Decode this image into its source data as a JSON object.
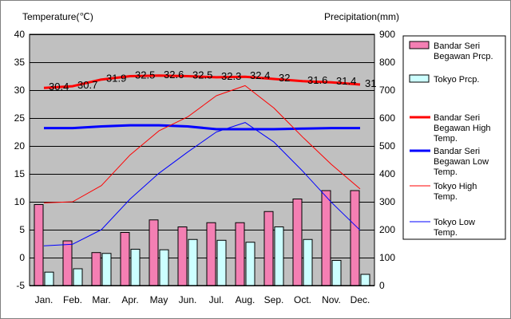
{
  "chart_data": {
    "type": "bar+line",
    "categories": [
      "Jan.",
      "Feb.",
      "Mar.",
      "Apr.",
      "May",
      "Jun.",
      "Jul.",
      "Aug.",
      "Sep.",
      "Oct.",
      "Nov.",
      "Dec."
    ],
    "left_axis": {
      "label": "Temperature(℃)",
      "ylim": [
        -5,
        40
      ],
      "ticks": [
        -5,
        0,
        5,
        10,
        15,
        20,
        25,
        30,
        35,
        40
      ]
    },
    "right_axis": {
      "label": "Precipitation(mm)",
      "ylim": [
        0,
        900
      ],
      "ticks": [
        0,
        100,
        200,
        300,
        400,
        500,
        600,
        700,
        800,
        900
      ]
    },
    "grid": true,
    "legend_placement": "right",
    "bar_series": [
      {
        "name": "Bandar Seri Begawan Prcp.",
        "axis": "right",
        "color": "#f47fb3",
        "values": [
          290,
          160,
          118,
          190,
          235,
          210,
          225,
          225,
          265,
          310,
          340,
          340
        ]
      },
      {
        "name": "Tokyo Prcp.",
        "axis": "right",
        "color": "#ccffff",
        "values": [
          48,
          60,
          115,
          130,
          128,
          165,
          162,
          155,
          210,
          165,
          90,
          40
        ]
      }
    ],
    "line_series": [
      {
        "name": "Bandar Seri Begawan High Temp.",
        "axis": "left",
        "color": "#ff0000",
        "width": 3,
        "values": [
          30.4,
          30.7,
          31.9,
          32.5,
          32.6,
          32.5,
          32.3,
          32.4,
          32,
          31.6,
          31.4,
          31
        ],
        "labels": [
          "30.4",
          "30.7",
          "31.9",
          "32.5",
          "32.6",
          "32.5",
          "32.3",
          "32.4",
          "32",
          "31.6",
          "31.4",
          "31"
        ]
      },
      {
        "name": "Bandar Seri Begawan Low Temp.",
        "axis": "left",
        "color": "#0000ff",
        "width": 3,
        "values": [
          23.2,
          23.2,
          23.5,
          23.7,
          23.7,
          23.5,
          23,
          23,
          23,
          23.1,
          23.2,
          23.2
        ]
      },
      {
        "name": "Tokyo High Temp.",
        "axis": "left",
        "color": "#ff0000",
        "width": 1,
        "values": [
          9.8,
          10,
          12.9,
          18.4,
          22.7,
          25.2,
          29,
          30.8,
          26.8,
          21.6,
          16.7,
          12.3
        ]
      },
      {
        "name": "Tokyo Low Temp.",
        "axis": "left",
        "color": "#0000ff",
        "width": 1,
        "values": [
          2.1,
          2.4,
          5,
          10.5,
          15.1,
          18.9,
          22.5,
          24.2,
          20.7,
          15.5,
          9.9,
          4.9
        ]
      }
    ],
    "legend": [
      {
        "lines": [
          "Bandar Seri",
          "Begawan Prcp."
        ],
        "kind": "bar",
        "color": "#f47fb3"
      },
      {
        "lines": [
          "Tokyo Prcp."
        ],
        "kind": "bar",
        "color": "#ccffff"
      },
      {
        "lines": [
          "Bandar Seri",
          "Begawan High",
          "Temp."
        ],
        "kind": "line",
        "color": "#ff0000",
        "width": 3
      },
      {
        "lines": [
          "Bandar Seri",
          "Begawan Low",
          "Temp."
        ],
        "kind": "line",
        "color": "#0000ff",
        "width": 3
      },
      {
        "lines": [
          "Tokyo High",
          "Temp."
        ],
        "kind": "line",
        "color": "#ff0000",
        "width": 1
      },
      {
        "lines": [
          "Tokyo Low",
          "Temp."
        ],
        "kind": "line",
        "color": "#0000ff",
        "width": 1
      }
    ],
    "colors": {
      "plot_background": "#c0c0c0",
      "grid": "#000000",
      "page_background": "#ffffff"
    }
  }
}
